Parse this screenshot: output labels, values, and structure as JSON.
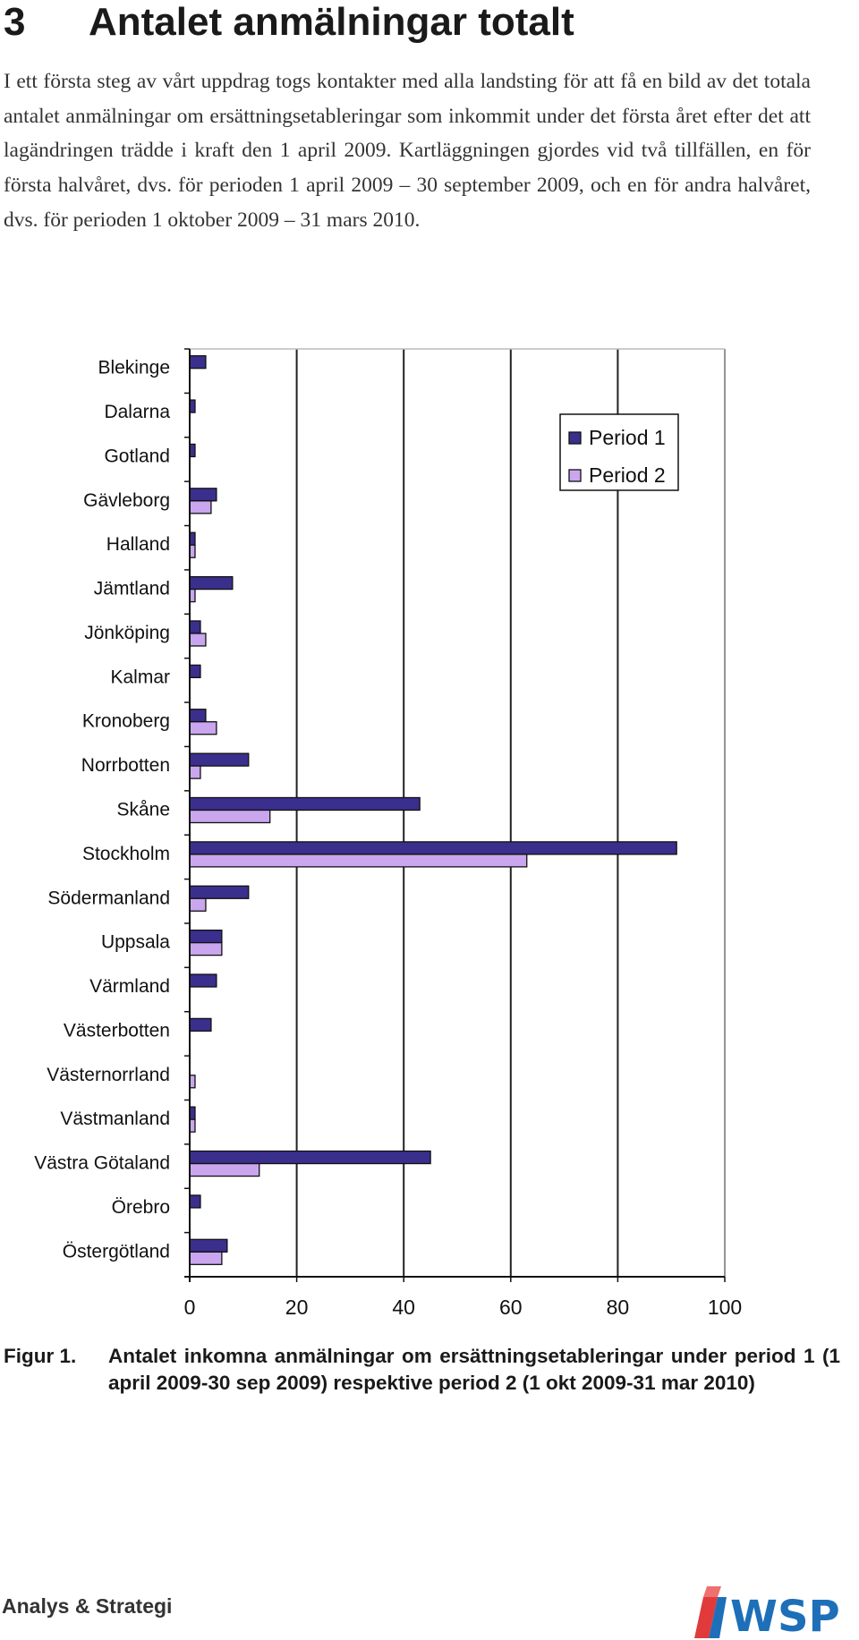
{
  "heading": {
    "number": "3",
    "title": "Antalet anmälningar totalt"
  },
  "paragraph": "I ett första steg av vårt uppdrag togs kontakter med alla landsting för att få en bild av det totala antalet anmälningar om ersättningsetableringar som inkommit under det första året efter det att lagändringen trädde i kraft den 1 april 2009. Kartläggningen gjordes vid två tillfällen, en för första halvåret, dvs. för perioden 1 april 2009 – 30 september 2009, och en för andra halvåret, dvs. för perioden 1 oktober 2009 – 31 mars 2010.",
  "chart_data": {
    "type": "bar",
    "orientation": "horizontal",
    "categories": [
      "Blekinge",
      "Dalarna",
      "Gotland",
      "Gävleborg",
      "Halland",
      "Jämtland",
      "Jönköping",
      "Kalmar",
      "Kronoberg",
      "Norrbotten",
      "Skåne",
      "Stockholm",
      "Södermanland",
      "Uppsala",
      "Värmland",
      "Västerbotten",
      "Västernorrland",
      "Västmanland",
      "Västra Götaland",
      "Örebro",
      "Östergötland"
    ],
    "series": [
      {
        "name": "Period 1",
        "color": "#3a2f8c",
        "values": [
          3,
          1,
          1,
          5,
          1,
          8,
          2,
          2,
          3,
          11,
          43,
          91,
          11,
          6,
          5,
          4,
          0,
          1,
          45,
          2,
          7
        ]
      },
      {
        "name": "Period 2",
        "color": "#c9a6ee",
        "values": [
          0,
          0,
          0,
          4,
          1,
          1,
          3,
          0,
          5,
          2,
          15,
          63,
          3,
          6,
          0,
          0,
          1,
          1,
          13,
          0,
          6
        ]
      }
    ],
    "xlim": [
      0,
      100
    ],
    "xticks": [
      "0",
      "20",
      "40",
      "60",
      "80",
      "100"
    ],
    "grid": true,
    "legend_position": "top-right"
  },
  "caption": {
    "label": "Figur 1.",
    "text": "Antalet inkomna anmälningar om ersättningsetableringar under period 1 (1 april 2009-30 sep 2009) respektive period 2 (1 okt 2009-31 mar 2010)"
  },
  "footer": {
    "left": "Analys & Strategi",
    "logo_text": "WSP"
  }
}
